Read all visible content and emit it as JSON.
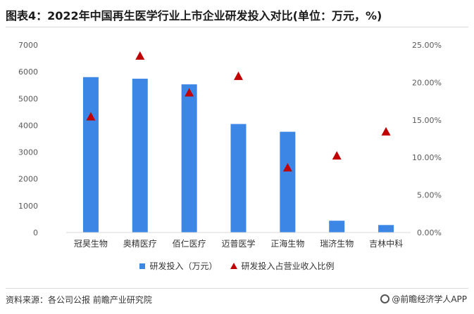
{
  "title": "图表4：2022年中国再生医学行业上市企业研发投入对比(单位：万元，%)",
  "legend": {
    "bar_label": "研发投入（万元）",
    "marker_label": "研发投入占营业收入比例"
  },
  "footer": {
    "source": "资料来源：各公司公报 前瞻产业研究院",
    "brand": "@前瞻经济学人APP"
  },
  "colors": {
    "bar": "#3c86e6",
    "marker": "#c00000"
  },
  "chart_data": {
    "type": "bar",
    "categories": [
      "冠昊生物",
      "奥精医疗",
      "佰仁医疗",
      "迈普医学",
      "正海生物",
      "瑞济生物",
      "吉林中科"
    ],
    "series": [
      {
        "name": "研发投入（万元）",
        "type": "bar",
        "axis": "left",
        "values": [
          5800,
          5740,
          5530,
          4050,
          3760,
          440,
          280
        ]
      },
      {
        "name": "研发投入占营业收入比例",
        "type": "scatter",
        "marker": "triangle",
        "axis": "right",
        "values": [
          15.4,
          23.5,
          18.6,
          20.8,
          8.6,
          10.2,
          13.4
        ]
      }
    ],
    "y_left": {
      "min": 0,
      "max": 7000,
      "ticks": [
        0,
        1000,
        2000,
        3000,
        4000,
        5000,
        6000,
        7000
      ],
      "tick_labels": [
        "0",
        "1000",
        "2000",
        "3000",
        "4000",
        "5000",
        "6000",
        "7000"
      ]
    },
    "y_right": {
      "min": 0,
      "max": 25,
      "ticks": [
        0,
        5,
        10,
        15,
        20,
        25
      ],
      "tick_labels": [
        "0.00%",
        "5.00%",
        "10.00%",
        "15.00%",
        "20.00%",
        "25.00%"
      ]
    },
    "grid": false,
    "legend_position": "bottom"
  }
}
